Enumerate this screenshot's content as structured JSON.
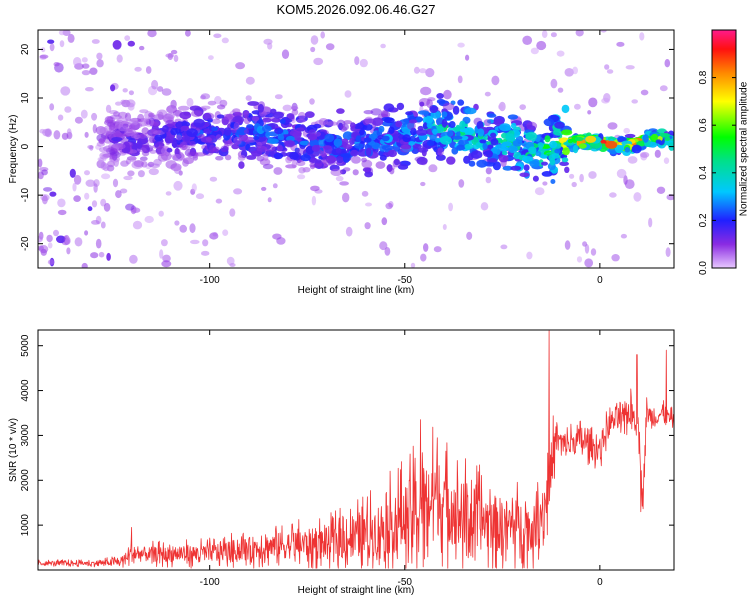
{
  "title": "KOM5.2026.092.06.46.G27",
  "colors": {
    "snr_line": "#ee3333",
    "axis": "#000000"
  },
  "chart_data": [
    {
      "type": "heatmap",
      "title": "KOM5.2026.092.06.46.G27",
      "xlabel": "Height of straight line (km)",
      "ylabel": "Frequency (Hz)",
      "xlim": [
        -144,
        19
      ],
      "ylim": [
        -25,
        24
      ],
      "xticks": [
        "-100",
        "-50",
        "0"
      ],
      "yticks": [
        "-20",
        "-10",
        "0",
        "10",
        "20"
      ],
      "xtick_values": [
        -100,
        -50,
        0
      ],
      "ytick_values": [
        -20,
        -10,
        0,
        10,
        20
      ],
      "colorbar": {
        "label": "Normalized spectral amplitude",
        "range": [
          0,
          1
        ],
        "ticks": [
          "0.0",
          "0.2",
          "0.4",
          "0.6",
          "0.8"
        ],
        "tick_values": [
          0,
          0.2,
          0.4,
          0.6,
          0.8
        ],
        "colormap": "rainbow (violet to red)"
      },
      "ridge": {
        "description": "dominant frequency track",
        "x": [
          -144,
          -125,
          -110,
          -100,
          -90,
          -80,
          -70,
          -60,
          -50,
          -45,
          -40,
          -35,
          -30,
          -25,
          -20,
          -15,
          -10,
          -5,
          0,
          5,
          10,
          15,
          19
        ],
        "y": [
          2,
          1,
          2,
          3,
          3,
          2,
          0,
          1,
          2,
          4,
          4,
          3,
          2,
          1,
          0,
          -1,
          1,
          1,
          1,
          0,
          1,
          2,
          1
        ],
        "amplitude": [
          0.08,
          0.15,
          0.2,
          0.25,
          0.28,
          0.3,
          0.28,
          0.3,
          0.35,
          0.4,
          0.45,
          0.5,
          0.45,
          0.45,
          0.5,
          0.55,
          0.65,
          0.9,
          0.95,
          0.9,
          0.85,
          0.7,
          0.7
        ]
      }
    },
    {
      "type": "line",
      "xlabel": "Height of straight line (km)",
      "ylabel": "SNR (10 * v/v)",
      "xlim": [
        -144,
        19
      ],
      "ylim": [
        0,
        5350
      ],
      "xticks": [
        "-100",
        "-50",
        "0"
      ],
      "yticks": [
        "1000",
        "2000",
        "3000",
        "4000",
        "5000"
      ],
      "xtick_values": [
        -100,
        -50,
        0
      ],
      "ytick_values": [
        1000,
        2000,
        3000,
        4000,
        5000
      ],
      "series": [
        {
          "name": "SNR",
          "color": "#ee3333",
          "envelope_x": [
            -144,
            -130,
            -123,
            -120,
            -110,
            -100,
            -90,
            -80,
            -70,
            -60,
            -50,
            -45,
            -43,
            -40,
            -35,
            -30,
            -25,
            -20,
            -17,
            -14,
            -13,
            -12,
            -11,
            -10,
            -8,
            -5,
            -2,
            0,
            2,
            4,
            6,
            8,
            10,
            11,
            12,
            14,
            16,
            19
          ],
          "envelope_mean": [
            150,
            150,
            180,
            350,
            350,
            380,
            480,
            560,
            600,
            800,
            1150,
            1400,
            1700,
            1500,
            1200,
            1100,
            1000,
            1000,
            900,
            1500,
            1900,
            2600,
            3000,
            2800,
            2800,
            2900,
            2750,
            2700,
            3200,
            3400,
            3300,
            3600,
            3100,
            1500,
            3500,
            3400,
            3500,
            3300
          ],
          "envelope_amp": [
            80,
            80,
            150,
            300,
            300,
            350,
            450,
            550,
            650,
            900,
            1400,
            1700,
            1600,
            1500,
            1400,
            1200,
            1100,
            1000,
            900,
            1000,
            1200,
            900,
            600,
            500,
            500,
            500,
            450,
            500,
            450,
            450,
            450,
            500,
            500,
            300,
            400,
            350,
            300,
            300
          ],
          "peaks": [
            {
              "x": -120,
              "y": 950
            },
            {
              "x": -46,
              "y": 3350
            },
            {
              "x": -13,
              "y": 5330
            },
            {
              "x": 9.5,
              "y": 4800
            },
            {
              "x": 10.5,
              "y": 1300
            },
            {
              "x": 17,
              "y": 4900
            }
          ]
        }
      ]
    }
  ]
}
